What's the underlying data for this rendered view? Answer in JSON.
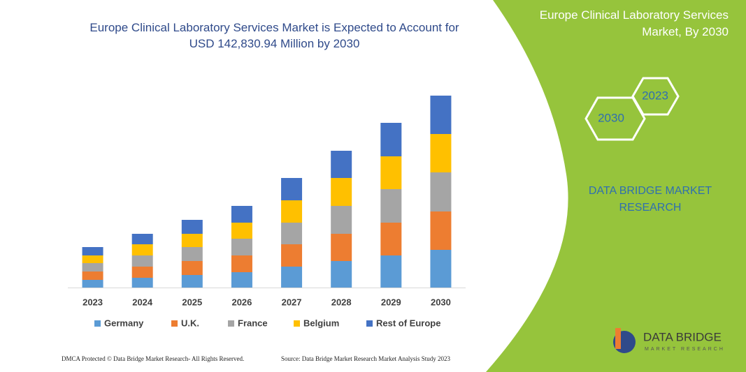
{
  "chart_data": {
    "type": "stacked_bar",
    "title": "Europe Clinical Laboratory Services Market is Expected to Account for USD 142,830.94 Million by 2030",
    "categories": [
      "2023",
      "2024",
      "2025",
      "2026",
      "2027",
      "2028",
      "2029",
      "2030"
    ],
    "series": [
      {
        "name": "Germany",
        "color": "#5b9bd5",
        "values": [
          11,
          14,
          18,
          22,
          30,
          38,
          46,
          54
        ]
      },
      {
        "name": "U.K.",
        "color": "#ed7d31",
        "values": [
          12,
          16,
          20,
          24,
          32,
          39,
          47,
          55
        ]
      },
      {
        "name": "France",
        "color": "#a5a5a5",
        "values": [
          12,
          16,
          20,
          24,
          31,
          40,
          48,
          56
        ]
      },
      {
        "name": "Belgium",
        "color": "#ffc000",
        "values": [
          11,
          16,
          19,
          23,
          32,
          40,
          47,
          55
        ]
      },
      {
        "name": "Rest of Europe",
        "color": "#4472c4",
        "values": [
          12,
          15,
          20,
          24,
          32,
          39,
          48,
          55
        ]
      }
    ],
    "legend": "bottom"
  },
  "panel": {
    "title": "Europe Clinical Laboratory Services Market, By 2030",
    "hexagons": [
      "2023",
      "2030"
    ],
    "brand": "DATA BRIDGE MARKET RESEARCH",
    "logo_name": "DATA BRIDGE",
    "logo_tagline": "MARKET RESEARCH"
  },
  "footer": {
    "left": "DMCA Protected © Data Bridge Market Research- All Rights Reserved.",
    "right": "Source: Data Bridge Market Research Market Analysis Study 2023"
  }
}
